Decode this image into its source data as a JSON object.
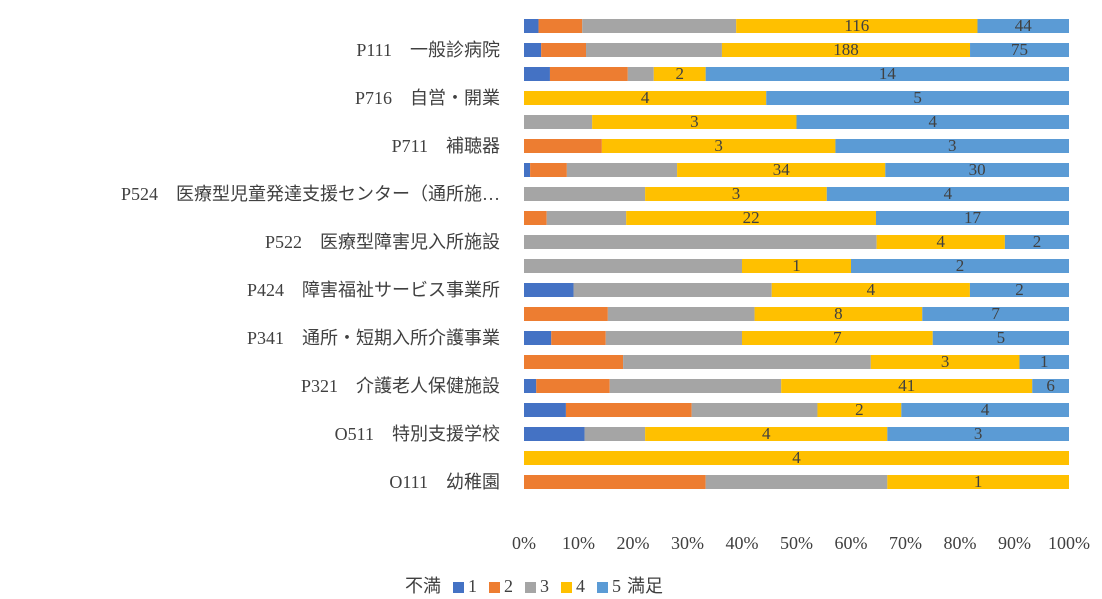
{
  "chart_data": {
    "type": "stacked_bar_100",
    "categories": [
      null,
      "P111　一般診病院",
      null,
      "P716　自営・開業",
      null,
      "P711　補聴器",
      null,
      "P524　医療型児童発達支援センター（通所施…",
      null,
      "P522　医療型障害児入所施設",
      null,
      "P424　障害福祉サービス事業所",
      null,
      "P341　通所・短期入所介護事業",
      null,
      "P321　介護老人保健施設",
      null,
      "O511　特別支援学校",
      null,
      "O111　幼稚園"
    ],
    "series": [
      {
        "name": "1",
        "color": "#4472c4",
        "data_labels": false,
        "values": [
          7,
          13,
          1,
          0,
          0,
          0,
          1,
          0,
          0,
          0,
          0,
          1,
          0,
          1,
          0,
          2,
          1,
          1,
          0,
          0
        ]
      },
      {
        "name": "2",
        "color": "#ed7d31",
        "data_labels": false,
        "values": [
          21,
          34,
          3,
          0,
          0,
          1,
          6,
          0,
          2,
          0,
          0,
          0,
          4,
          2,
          2,
          12,
          3,
          0,
          0,
          1
        ]
      },
      {
        "name": "3",
        "color": "#a5a5a5",
        "data_labels": false,
        "values": [
          74,
          103,
          1,
          0,
          1,
          0,
          18,
          2,
          7,
          11,
          2,
          4,
          7,
          5,
          5,
          28,
          3,
          1,
          0,
          1
        ]
      },
      {
        "name": "4",
        "color": "#ffc000",
        "data_labels": true,
        "values": [
          116,
          188,
          2,
          4,
          3,
          3,
          34,
          3,
          22,
          4,
          1,
          4,
          8,
          7,
          3,
          41,
          2,
          4,
          4,
          1
        ]
      },
      {
        "name": "5",
        "color": "#5b9bd5",
        "data_labels": true,
        "values": [
          44,
          75,
          14,
          5,
          4,
          3,
          30,
          4,
          17,
          2,
          2,
          2,
          7,
          5,
          1,
          6,
          4,
          3,
          0,
          0
        ]
      }
    ],
    "xlim": [
      0,
      100
    ],
    "xticks": [
      {
        "value": 0,
        "label": "0%"
      },
      {
        "value": 10,
        "label": "10%"
      },
      {
        "value": 20,
        "label": "20%"
      },
      {
        "value": 30,
        "label": "30%"
      },
      {
        "value": 40,
        "label": "40%"
      },
      {
        "value": 50,
        "label": "50%"
      },
      {
        "value": 60,
        "label": "60%"
      },
      {
        "value": 70,
        "label": "70%"
      },
      {
        "value": 80,
        "label": "80%"
      },
      {
        "value": 90,
        "label": "90%"
      },
      {
        "value": 100,
        "label": "100%"
      }
    ],
    "grid": false,
    "legend": {
      "position": "bottom",
      "before": "不満",
      "after": "満足"
    }
  }
}
